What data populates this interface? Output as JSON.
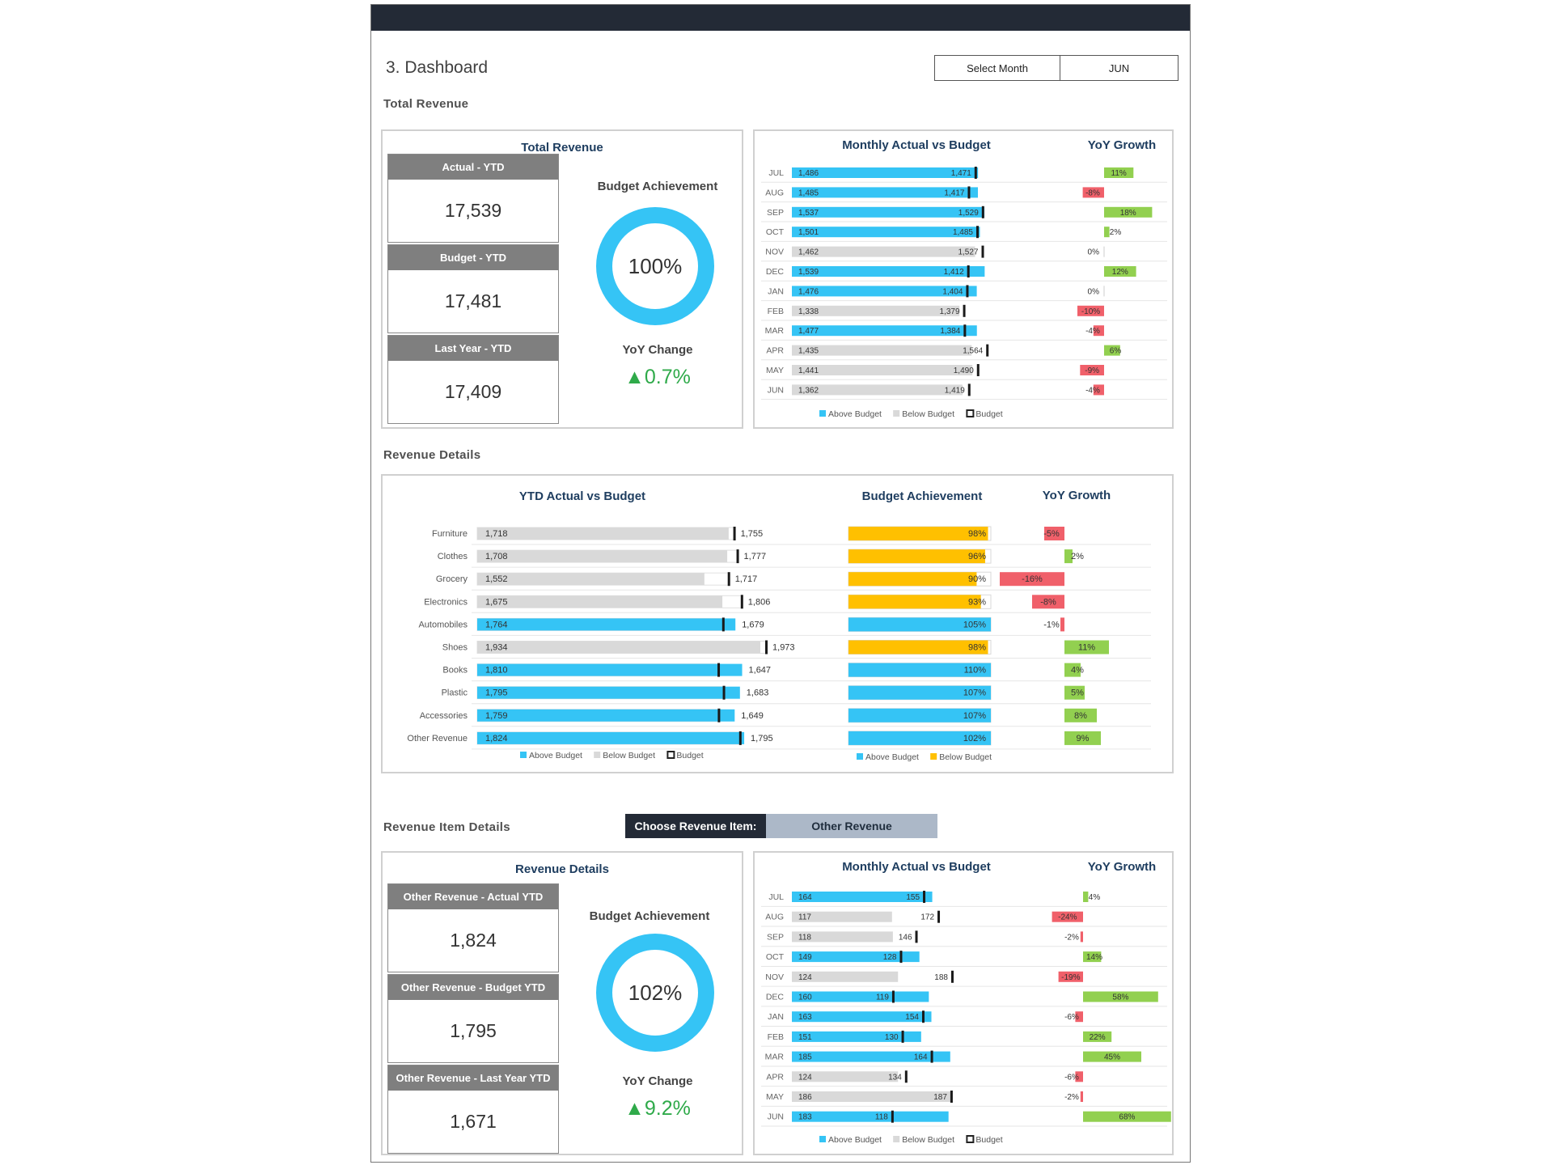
{
  "page": {
    "title": "3. Dashboard",
    "select_month_label": "Select Month",
    "select_month_value": "JUN"
  },
  "sections": {
    "total_revenue": "Total Revenue",
    "revenue_details": "Revenue Details",
    "revenue_item_details": "Revenue Item Details"
  },
  "total_panel": {
    "title": "Total Revenue",
    "kpis": [
      {
        "label": "Actual - YTD",
        "value": "17,539"
      },
      {
        "label": "Budget - YTD",
        "value": "17,481"
      },
      {
        "label": "Last Year - YTD",
        "value": "17,409"
      }
    ],
    "budget_achievement_label": "Budget Achievement",
    "budget_achievement": "100%",
    "budget_achievement_fraction": 1.0,
    "yoy_label": "YoY Change",
    "yoy_value": "0.7%"
  },
  "item_panel": {
    "title": "Revenue Details",
    "kpis": [
      {
        "label": "Other Revenue - Actual YTD",
        "value": "1,824"
      },
      {
        "label": "Other Revenue - Budget YTD",
        "value": "1,795"
      },
      {
        "label": "Other Revenue - Last Year YTD",
        "value": "1,671"
      }
    ],
    "budget_achievement_label": "Budget Achievement",
    "budget_achievement": "102%",
    "budget_achievement_fraction": 1.0,
    "yoy_label": "YoY Change",
    "yoy_value": "9.2%"
  },
  "chooser": {
    "label": "Choose Revenue Item:",
    "value": "Other Revenue"
  },
  "colors": {
    "above": "#35c4f5",
    "below": "#d9d9d9",
    "budget_marker": "#1a1a1a",
    "gold": "#ffc000",
    "pos": "#92d050",
    "neg": "#f0606a",
    "title": "#1f3e60",
    "up_arrow": "#2faa4a"
  },
  "chart_data": [
    {
      "id": "monthly_total",
      "type": "bar",
      "title": "Monthly Actual vs Budget",
      "title2": "YoY Growth",
      "categories": [
        "JUL",
        "AUG",
        "SEP",
        "OCT",
        "NOV",
        "DEC",
        "JAN",
        "FEB",
        "MAR",
        "APR",
        "MAY",
        "JUN"
      ],
      "series": [
        {
          "name": "Actual",
          "values": [
            1486,
            1485,
            1537,
            1501,
            1462,
            1539,
            1476,
            1338,
            1477,
            1435,
            1441,
            1362
          ]
        },
        {
          "name": "Budget",
          "values": [
            1471,
            1417,
            1529,
            1485,
            1527,
            1412,
            1404,
            1379,
            1384,
            1564,
            1490,
            1419
          ]
        }
      ],
      "yoy_labels": [
        "11%",
        "-8%",
        "18%",
        "2%",
        "0%",
        "12%",
        "0%",
        "-10%",
        "-4%",
        "6%",
        "-9%",
        "-4%"
      ],
      "legend": [
        "Above Budget",
        "Below Budget",
        "Budget"
      ]
    },
    {
      "id": "ytd_category",
      "type": "bar",
      "title": "YTD Actual vs Budget",
      "title_ba": "Budget Achievement",
      "title_yoy": "YoY Growth",
      "categories": [
        "Furniture",
        "Clothes",
        "Grocery",
        "Electronics",
        "Automobiles",
        "Shoes",
        "Books",
        "Plastic",
        "Accessories",
        "Other Revenue"
      ],
      "series": [
        {
          "name": "Actual",
          "values": [
            1718,
            1708,
            1552,
            1675,
            1764,
            1934,
            1810,
            1795,
            1759,
            1824
          ]
        },
        {
          "name": "Budget",
          "values": [
            1755,
            1777,
            1717,
            1806,
            1679,
            1973,
            1647,
            1683,
            1649,
            1795
          ]
        }
      ],
      "achievement_labels": [
        "98%",
        "96%",
        "90%",
        "93%",
        "105%",
        "98%",
        "110%",
        "107%",
        "107%",
        "102%"
      ],
      "yoy_labels": [
        "-5%",
        "2%",
        "-16%",
        "-8%",
        "-1%",
        "11%",
        "4%",
        "5%",
        "8%",
        "9%"
      ],
      "legend": [
        "Above Budget",
        "Below Budget",
        "Budget"
      ],
      "legend_ba": [
        "Above Budget",
        "Below Budget"
      ]
    },
    {
      "id": "monthly_item",
      "type": "bar",
      "title": "Monthly Actual vs Budget",
      "title2": "YoY Growth",
      "categories": [
        "JUL",
        "AUG",
        "SEP",
        "OCT",
        "NOV",
        "DEC",
        "JAN",
        "FEB",
        "MAR",
        "APR",
        "MAY",
        "JUN"
      ],
      "series": [
        {
          "name": "Actual",
          "values": [
            164,
            117,
            118,
            149,
            124,
            160,
            163,
            151,
            185,
            124,
            186,
            183
          ]
        },
        {
          "name": "Budget",
          "values": [
            155,
            172,
            146,
            128,
            188,
            119,
            154,
            130,
            164,
            134,
            187,
            118
          ]
        }
      ],
      "yoy_labels": [
        "4%",
        "-24%",
        "-2%",
        "14%",
        "-19%",
        "58%",
        "-6%",
        "22%",
        "45%",
        "-6%",
        "-2%",
        "68%"
      ],
      "legend": [
        "Above Budget",
        "Below Budget",
        "Budget"
      ]
    }
  ]
}
